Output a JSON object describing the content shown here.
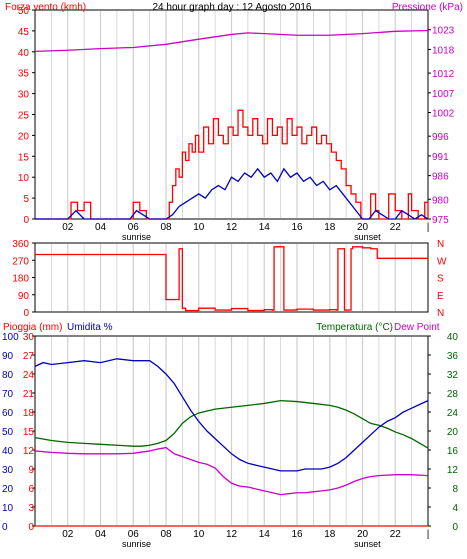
{
  "colors": {
    "wind": "#ff0000",
    "pressure": "#cc00cc",
    "humidity": "#0000c0",
    "temperature": "#006600",
    "dewpoint": "#cc00cc",
    "rain": "#ff0000",
    "grid": "#d0d0d0",
    "frame": "#000000"
  },
  "chart_data": [
    {
      "type": "line",
      "title": "24 hour graph day : 12 Agosto 2016",
      "ylabel": "Forza vento (kmh)",
      "y2label": "Pressione (kPa)",
      "ylim": [
        0,
        50
      ],
      "y_ticks": [
        0,
        5,
        10,
        15,
        20,
        25,
        30,
        35,
        40,
        45,
        50
      ],
      "y2lim": [
        975,
        1028
      ],
      "y2_ticks": [
        975,
        980,
        986,
        991,
        996,
        1002,
        1007,
        1012,
        1018,
        1023
      ],
      "xlim": [
        0,
        24
      ],
      "x_ticks": [
        2,
        4,
        6,
        8,
        10,
        12,
        14,
        16,
        18,
        20,
        22,
        24
      ],
      "x_tick_labels": [
        "02",
        "04",
        "06",
        "08",
        "10",
        "12",
        "14",
        "16",
        "18",
        "20",
        "22",
        "|"
      ],
      "x_markers": [
        {
          "x": 6.2,
          "label": "sunrise"
        },
        {
          "x": 20.3,
          "label": "sunset"
        }
      ],
      "series": [
        {
          "axis": "left",
          "color": "wind",
          "step": true,
          "x": [
            0,
            2.0,
            2.2,
            2.6,
            3.0,
            3.4,
            5.8,
            6.0,
            6.4,
            6.8,
            7.0,
            8.0,
            8.2,
            8.4,
            8.6,
            8.8,
            9.0,
            9.2,
            9.4,
            9.6,
            9.8,
            10.0,
            10.3,
            10.6,
            10.9,
            11.2,
            11.5,
            11.8,
            12.1,
            12.4,
            12.7,
            13.0,
            13.3,
            13.6,
            13.9,
            14.2,
            14.5,
            14.8,
            15.1,
            15.4,
            15.7,
            16.0,
            16.3,
            16.6,
            16.9,
            17.2,
            17.5,
            17.8,
            18.1,
            18.4,
            18.7,
            19.0,
            19.3,
            19.6,
            19.9,
            20.2,
            20.5,
            20.8,
            21.0,
            21.3,
            21.6,
            22.0,
            22.4,
            22.8,
            23.0,
            23.4,
            23.8,
            24.0
          ],
          "y": [
            0,
            0,
            4,
            2,
            4,
            0,
            0,
            4,
            2,
            0,
            0,
            0,
            4,
            8,
            12,
            10,
            16,
            14,
            18,
            16,
            20,
            16,
            22,
            18,
            24,
            20,
            18,
            22,
            20,
            26,
            22,
            20,
            24,
            20,
            18,
            24,
            20,
            22,
            18,
            24,
            20,
            22,
            18,
            20,
            22,
            18,
            20,
            18,
            16,
            14,
            12,
            8,
            6,
            4,
            0,
            0,
            6,
            2,
            0,
            0,
            6,
            2,
            0,
            6,
            2,
            0,
            4,
            0
          ]
        },
        {
          "axis": "left",
          "color": "humidity",
          "step": false,
          "x": [
            0,
            2.0,
            2.5,
            3.0,
            5.8,
            6.2,
            6.6,
            7.0,
            8.0,
            8.4,
            8.8,
            9.2,
            9.6,
            10.0,
            10.4,
            10.8,
            11.2,
            11.6,
            12.0,
            12.4,
            12.8,
            13.2,
            13.6,
            14.0,
            14.4,
            14.8,
            15.2,
            15.6,
            16.0,
            16.4,
            16.8,
            17.2,
            17.6,
            18.0,
            18.4,
            18.8,
            19.2,
            19.6,
            20.0,
            20.4,
            20.8,
            21.2,
            21.6,
            22.0,
            22.4,
            22.8,
            23.2,
            23.6,
            24.0
          ],
          "y": [
            0,
            0,
            2,
            0,
            0,
            2,
            1,
            0,
            0,
            1,
            3,
            4,
            5,
            6,
            5,
            7,
            8,
            7,
            10,
            9,
            11,
            10,
            12,
            10,
            11,
            9,
            12,
            10,
            11,
            9,
            10,
            8,
            9,
            7,
            8,
            6,
            4,
            2,
            0,
            0,
            2,
            1,
            0,
            0,
            2,
            1,
            0,
            1,
            0
          ]
        },
        {
          "axis": "right",
          "color": "pressure",
          "step": false,
          "x": [
            0,
            2,
            4,
            6,
            8,
            10,
            12,
            13,
            14,
            16,
            18,
            20,
            22,
            24
          ],
          "y": [
            1017.5,
            1017.8,
            1018.2,
            1018.5,
            1019.3,
            1020.6,
            1021.8,
            1022.2,
            1022.0,
            1021.6,
            1021.6,
            1022.0,
            1022.6,
            1022.8
          ]
        }
      ]
    },
    {
      "type": "line",
      "ylabels": [
        "N",
        "W",
        "S",
        "E",
        "N"
      ],
      "ylim": [
        0,
        360
      ],
      "y_ticks": [
        0,
        90,
        180,
        270,
        360
      ],
      "xlim": [
        0,
        24
      ],
      "x_ticks": [
        2,
        4,
        6,
        8,
        10,
        12,
        14,
        16,
        18,
        20,
        22,
        24
      ],
      "series": [
        {
          "axis": "left",
          "color": "wind",
          "step": true,
          "x": [
            0,
            7.9,
            8.0,
            8.6,
            8.8,
            8.9,
            9.0,
            9.2,
            10.0,
            11.0,
            12.0,
            13.0,
            14.0,
            14.5,
            14.6,
            15.1,
            15.2,
            16.0,
            17.0,
            18.0,
            18.4,
            18.5,
            18.8,
            18.9,
            19.3,
            19.4,
            20.0,
            20.5,
            20.9,
            24.0
          ],
          "y": [
            300,
            300,
            65,
            65,
            330,
            330,
            20,
            8,
            20,
            10,
            18,
            8,
            12,
            10,
            340,
            340,
            10,
            15,
            10,
            12,
            10,
            330,
            330,
            10,
            330,
            340,
            335,
            330,
            280,
            280
          ]
        }
      ]
    },
    {
      "type": "line",
      "ylabel": "Pioggia (mm)",
      "ylabel2": "Umidita %",
      "y2label": "Temperatura (°C)",
      "y2label2": "Dew Point",
      "ylim": [
        0,
        30
      ],
      "y_ticks": [
        0,
        3,
        6,
        9,
        12,
        15,
        18,
        21,
        24,
        27,
        30
      ],
      "y_humidity_ticks": [
        0,
        10,
        20,
        30,
        40,
        50,
        60,
        70,
        80,
        90,
        100
      ],
      "y2lim": [
        0,
        40
      ],
      "y2_ticks": [
        0,
        4,
        8,
        12,
        16,
        20,
        24,
        28,
        32,
        36,
        40
      ],
      "xlim": [
        0,
        24
      ],
      "x_ticks": [
        2,
        4,
        6,
        8,
        10,
        12,
        14,
        16,
        18,
        20,
        22,
        24
      ],
      "x_tick_labels": [
        "02",
        "04",
        "06",
        "08",
        "10",
        "12",
        "14",
        "16",
        "18",
        "20",
        "22",
        "|"
      ],
      "x_markers": [
        {
          "x": 6.2,
          "label": "sunrise"
        },
        {
          "x": 20.3,
          "label": "sunset"
        }
      ],
      "series": [
        {
          "axis": "humidity",
          "color": "humidity",
          "x": [
            0,
            0.5,
            1,
            2,
            3,
            4,
            5,
            6,
            7,
            7.5,
            8,
            8.5,
            9,
            9.5,
            10,
            10.5,
            11,
            11.5,
            12,
            12.5,
            13,
            13.5,
            14,
            14.5,
            15,
            15.5,
            16,
            16.5,
            17,
            17.5,
            18,
            18.5,
            19,
            19.5,
            20,
            20.5,
            21,
            21.5,
            22,
            22.5,
            23,
            23.5,
            24
          ],
          "y": [
            84,
            86,
            85,
            86,
            87,
            86,
            88,
            87,
            87,
            84,
            80,
            75,
            68,
            61,
            55,
            50,
            46,
            42,
            38,
            35,
            33,
            32,
            31,
            30,
            29,
            29,
            29,
            30,
            30,
            30,
            31,
            33,
            36,
            40,
            44,
            48,
            52,
            55,
            57,
            60,
            62,
            64,
            66
          ]
        },
        {
          "axis": "right",
          "color": "temperature",
          "x": [
            0,
            1,
            2,
            3,
            4,
            5,
            6,
            6.5,
            7,
            7.5,
            8,
            8.5,
            9,
            9.5,
            10,
            11,
            12,
            13,
            14,
            15,
            16,
            17,
            18,
            18.5,
            19,
            19.5,
            20,
            20.5,
            21,
            21.5,
            22,
            22.5,
            23,
            23.5,
            24
          ],
          "y": [
            18.6,
            18.0,
            17.6,
            17.4,
            17.2,
            17.0,
            16.8,
            16.8,
            17.0,
            17.4,
            18.0,
            19.5,
            21.6,
            23.0,
            23.8,
            24.6,
            25.0,
            25.4,
            25.8,
            26.4,
            26.2,
            25.8,
            25.4,
            25.0,
            24.4,
            23.6,
            22.6,
            21.6,
            21.2,
            20.6,
            19.8,
            19.2,
            18.4,
            17.4,
            16.4
          ]
        },
        {
          "axis": "right",
          "color": "dewpoint",
          "x": [
            0,
            1,
            2,
            3,
            4,
            5,
            6,
            7,
            7.5,
            8,
            8.5,
            9,
            9.5,
            10,
            10.5,
            11,
            11.5,
            12,
            12.5,
            13,
            13.5,
            14,
            14.5,
            15,
            15.5,
            16,
            16.5,
            17,
            17.5,
            18,
            18.5,
            19,
            19.5,
            20,
            20.5,
            21,
            22,
            23,
            24
          ],
          "y": [
            15.8,
            15.5,
            15.3,
            15.2,
            15.2,
            15.2,
            15.3,
            15.8,
            16.2,
            16.5,
            15.2,
            14.6,
            14.0,
            13.4,
            13.0,
            12.2,
            10.4,
            9.0,
            8.4,
            8.2,
            7.8,
            7.4,
            7.0,
            6.6,
            6.8,
            7.0,
            7.0,
            7.2,
            7.4,
            7.6,
            8.0,
            8.6,
            9.4,
            10.0,
            10.4,
            10.6,
            10.8,
            10.8,
            10.6
          ]
        },
        {
          "axis": "left",
          "color": "rain",
          "x": [
            0,
            24
          ],
          "y": [
            0,
            0
          ]
        }
      ]
    }
  ]
}
